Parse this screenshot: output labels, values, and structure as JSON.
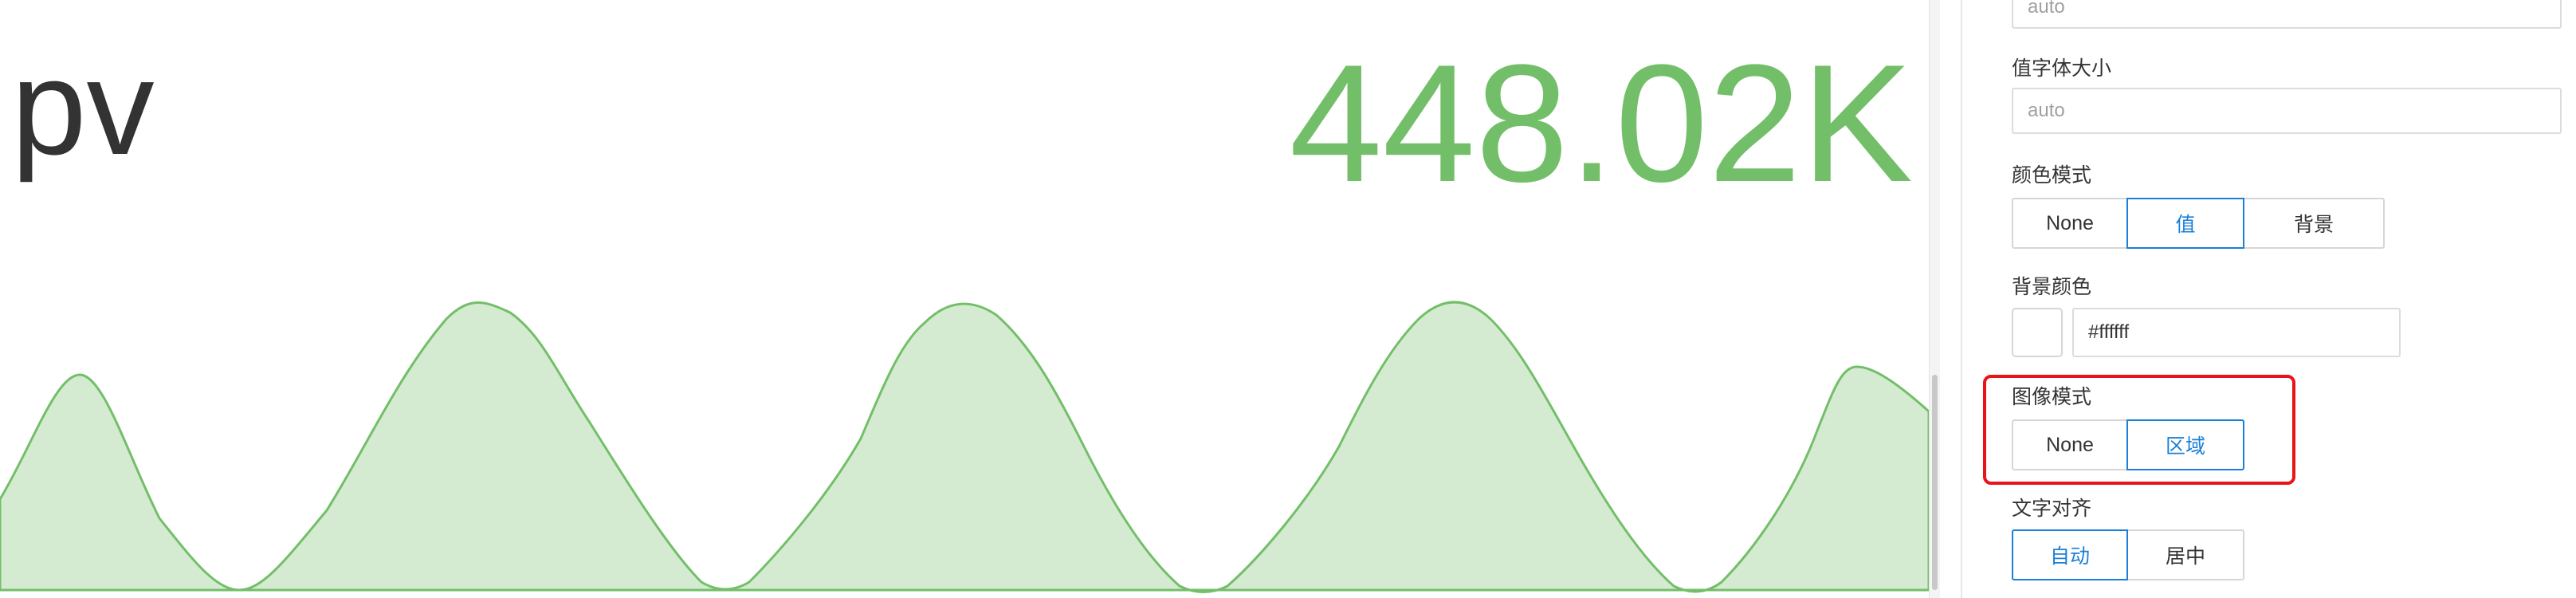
{
  "stat": {
    "name": "pv",
    "value": "448.02K",
    "value_color": "#73bf69",
    "fill_color": "#d5ebd1",
    "line_color": "#73bf69"
  },
  "options": {
    "top_input_value": "auto",
    "value_font_size": {
      "label": "值字体大小",
      "placeholder": "auto"
    },
    "color_mode": {
      "label": "颜色模式",
      "options": [
        "None",
        "值",
        "背景"
      ],
      "selected": "值"
    },
    "background_color": {
      "label": "背景颜色",
      "value": "#ffffff",
      "swatch_color": "#ffffff"
    },
    "graph_mode": {
      "label": "图像模式",
      "options": [
        "None",
        "区域"
      ],
      "selected": "区域"
    },
    "text_align": {
      "label": "文字对齐",
      "options": [
        "自动",
        "居中"
      ],
      "selected": "自动"
    },
    "accent_color": "#1a7fd6",
    "highlight_color": "#e8141b"
  }
}
